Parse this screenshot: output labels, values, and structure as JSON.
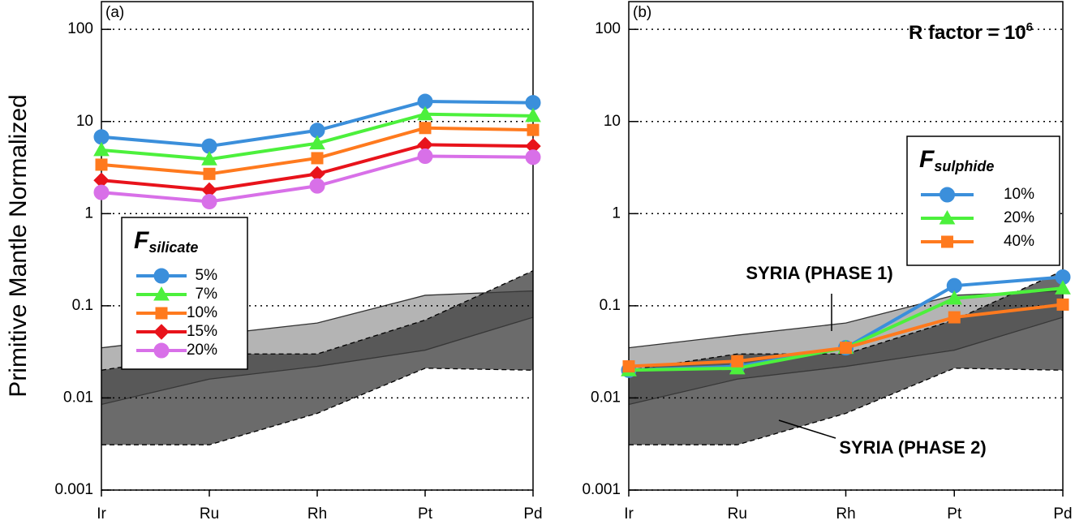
{
  "chart_data": [
    {
      "type": "line",
      "panel_label": "(a)",
      "ylabel": "Primitive Mantle Normalized",
      "categories": [
        "Ir",
        "Ru",
        "Rh",
        "Pt",
        "Pd"
      ],
      "log_scale": true,
      "grid": true,
      "ylim": [
        0.001,
        200
      ],
      "yticks": [
        0.001,
        0.01,
        0.1,
        1,
        10,
        100
      ],
      "legend_title": "F",
      "legend_title_sub": "silicate",
      "legend_position": "center left",
      "bands": [
        {
          "upper": [
            0.035,
            0.048,
            0.065,
            0.13,
            0.145
          ],
          "lower": [
            0.0085,
            0.016,
            0.022,
            0.033,
            0.075
          ],
          "color": "#b4b4b4",
          "line_style": "solid"
        },
        {
          "upper": [
            0.02,
            0.03,
            0.03,
            0.07,
            0.24
          ],
          "lower": [
            0.0031,
            0.0031,
            0.0068,
            0.021,
            0.02
          ],
          "color": "#3a3a3a",
          "line_style": "dashed"
        }
      ],
      "series": [
        {
          "name": "5%",
          "color": "#3b8fdb",
          "marker": "circle",
          "values": [
            6.8,
            5.4,
            8,
            16.5,
            16
          ]
        },
        {
          "name": "7%",
          "color": "#4cf03c",
          "marker": "triangle",
          "values": [
            4.9,
            3.9,
            5.8,
            12,
            11.5
          ]
        },
        {
          "name": "10%",
          "color": "#ff7a1e",
          "marker": "square",
          "values": [
            3.4,
            2.7,
            4,
            8.5,
            8.1
          ]
        },
        {
          "name": "15%",
          "color": "#e8131b",
          "marker": "diamond",
          "values": [
            2.3,
            1.8,
            2.7,
            5.6,
            5.4
          ]
        },
        {
          "name": "20%",
          "color": "#d870e8",
          "marker": "circle",
          "values": [
            1.7,
            1.35,
            2.0,
            4.2,
            4.1
          ]
        }
      ]
    },
    {
      "type": "line",
      "panel_label": "(b)",
      "annotation": "R factor = 10",
      "annotation_sup": "6",
      "categories": [
        "Ir",
        "Ru",
        "Rh",
        "Pt",
        "Pd"
      ],
      "log_scale": true,
      "grid": true,
      "ylim": [
        0.001,
        200
      ],
      "yticks": [
        0.001,
        0.01,
        0.1,
        1,
        10,
        100
      ],
      "legend_title": "F",
      "legend_title_sub": "sulphide",
      "legend_position": "upper right",
      "band_labels": [
        "SYRIA (PHASE 1)",
        "SYRIA (PHASE 2)"
      ],
      "bands": [
        {
          "upper": [
            0.035,
            0.048,
            0.065,
            0.13,
            0.145
          ],
          "lower": [
            0.0085,
            0.016,
            0.022,
            0.033,
            0.075
          ],
          "color": "#b4b4b4",
          "line_style": "solid"
        },
        {
          "upper": [
            0.02,
            0.03,
            0.03,
            0.07,
            0.24
          ],
          "lower": [
            0.0031,
            0.0031,
            0.0068,
            0.021,
            0.02
          ],
          "color": "#3a3a3a",
          "line_style": "dashed"
        }
      ],
      "series": [
        {
          "name": "10%",
          "color": "#3b8fdb",
          "marker": "circle",
          "values": [
            0.02,
            0.022,
            0.035,
            0.165,
            0.205
          ]
        },
        {
          "name": "20%",
          "color": "#4cf03c",
          "marker": "triangle",
          "values": [
            0.02,
            0.021,
            0.035,
            0.12,
            0.155
          ]
        },
        {
          "name": "40%",
          "color": "#ff7a1e",
          "marker": "square",
          "values": [
            0.022,
            0.025,
            0.035,
            0.075,
            0.103
          ]
        }
      ]
    }
  ]
}
